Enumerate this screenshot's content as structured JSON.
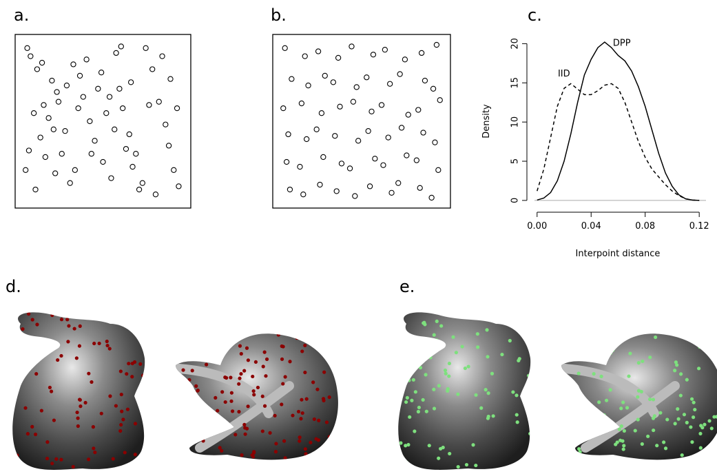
{
  "chart_data": [
    {
      "type": "scatter",
      "label": "a.",
      "x": [
        0.04,
        0.06,
        0.1,
        0.13,
        0.19,
        0.22,
        0.08,
        0.14,
        0.2,
        0.25,
        0.3,
        0.33,
        0.36,
        0.38,
        0.42,
        0.45,
        0.5,
        0.55,
        0.58,
        0.6,
        0.62,
        0.66,
        0.7,
        0.72,
        0.76,
        0.8,
        0.84,
        0.88,
        0.9,
        0.93,
        0.96,
        0.05,
        0.12,
        0.17,
        0.23,
        0.28,
        0.32,
        0.4,
        0.47,
        0.52,
        0.57,
        0.64,
        0.68,
        0.74,
        0.82,
        0.86,
        0.91,
        0.95,
        0.03,
        0.09,
        0.15,
        0.21,
        0.27,
        0.35,
        0.43,
        0.49,
        0.54,
        0.61,
        0.67,
        0.78
      ],
      "values": [
        0.95,
        0.9,
        0.82,
        0.86,
        0.75,
        0.68,
        0.55,
        0.6,
        0.45,
        0.3,
        0.12,
        0.2,
        0.78,
        0.65,
        0.5,
        0.38,
        0.25,
        0.15,
        0.92,
        0.7,
        0.58,
        0.42,
        0.3,
        0.08,
        0.95,
        0.82,
        0.62,
        0.48,
        0.35,
        0.2,
        0.1,
        0.32,
        0.4,
        0.52,
        0.62,
        0.72,
        0.85,
        0.88,
        0.7,
        0.55,
        0.45,
        0.33,
        0.22,
        0.12,
        0.05,
        0.9,
        0.76,
        0.58,
        0.2,
        0.08,
        0.28,
        0.18,
        0.44,
        0.58,
        0.3,
        0.8,
        0.65,
        0.96,
        0.74,
        0.6
      ],
      "xlim": [
        0,
        1
      ],
      "ylim": [
        0,
        1
      ]
    },
    {
      "type": "scatter",
      "label": "b.",
      "x": [
        0.04,
        0.16,
        0.24,
        0.36,
        0.44,
        0.57,
        0.64,
        0.76,
        0.86,
        0.95,
        0.08,
        0.18,
        0.28,
        0.33,
        0.47,
        0.53,
        0.67,
        0.73,
        0.88,
        0.93,
        0.03,
        0.14,
        0.26,
        0.37,
        0.45,
        0.56,
        0.62,
        0.78,
        0.84,
        0.97,
        0.06,
        0.17,
        0.23,
        0.34,
        0.48,
        0.54,
        0.66,
        0.74,
        0.87,
        0.94,
        0.05,
        0.13,
        0.27,
        0.38,
        0.43,
        0.58,
        0.63,
        0.77,
        0.83,
        0.96,
        0.07,
        0.15,
        0.25,
        0.35,
        0.46,
        0.55,
        0.68,
        0.72,
        0.85,
        0.92
      ],
      "values": [
        0.95,
        0.9,
        0.93,
        0.89,
        0.96,
        0.91,
        0.94,
        0.88,
        0.92,
        0.97,
        0.76,
        0.72,
        0.78,
        0.74,
        0.71,
        0.77,
        0.73,
        0.79,
        0.75,
        0.7,
        0.58,
        0.61,
        0.55,
        0.59,
        0.62,
        0.56,
        0.6,
        0.54,
        0.57,
        0.63,
        0.42,
        0.39,
        0.45,
        0.41,
        0.38,
        0.44,
        0.4,
        0.46,
        0.43,
        0.37,
        0.25,
        0.22,
        0.28,
        0.24,
        0.21,
        0.27,
        0.23,
        0.29,
        0.26,
        0.2,
        0.08,
        0.05,
        0.11,
        0.07,
        0.04,
        0.1,
        0.06,
        0.12,
        0.09,
        0.03
      ],
      "xlim": [
        0,
        1
      ],
      "ylim": [
        0,
        1
      ]
    },
    {
      "type": "line",
      "label": "c.",
      "xlabel": "Interpoint distance",
      "ylabel": "Density",
      "x": [
        0,
        0.005,
        0.01,
        0.015,
        0.02,
        0.025,
        0.03,
        0.035,
        0.04,
        0.045,
        0.05,
        0.055,
        0.06,
        0.065,
        0.07,
        0.075,
        0.08,
        0.085,
        0.09,
        0.095,
        0.1,
        0.105,
        0.11,
        0.115,
        0.12
      ],
      "series": [
        {
          "name": "DPP",
          "color": "#000000",
          "dash": "solid",
          "values": [
            0.05,
            0.3,
            1.0,
            2.5,
            5,
            8.5,
            12.5,
            16,
            18,
            19.5,
            20.2,
            19.5,
            18.5,
            17.8,
            16.5,
            14.5,
            12,
            9,
            6,
            3.5,
            1.8,
            0.7,
            0.2,
            0.05,
            0
          ]
        },
        {
          "name": "IID",
          "color": "#000000",
          "dash": "dashed",
          "values": [
            1.2,
            4,
            8,
            12,
            14.3,
            14.9,
            14.2,
            13.5,
            13.5,
            14,
            14.7,
            14.9,
            14.3,
            12.5,
            10,
            7.5,
            5.5,
            4,
            3,
            2,
            1.2,
            0.6,
            0.2,
            0.05,
            0
          ]
        }
      ],
      "xlim": [
        -0.006,
        0.125
      ],
      "ylim": [
        -0.8,
        21
      ],
      "xticks": [
        {
          "value": 0,
          "label": "0.00"
        },
        {
          "value": 0.04,
          "label": "0.04"
        },
        {
          "value": 0.08,
          "label": "0.08"
        },
        {
          "value": 0.12,
          "label": "0.12"
        }
      ],
      "yticks": [
        0,
        5,
        10,
        15,
        20
      ],
      "zero_line": true
    }
  ],
  "figures": [
    {
      "label": "d."
    },
    {
      "label": "e."
    }
  ]
}
